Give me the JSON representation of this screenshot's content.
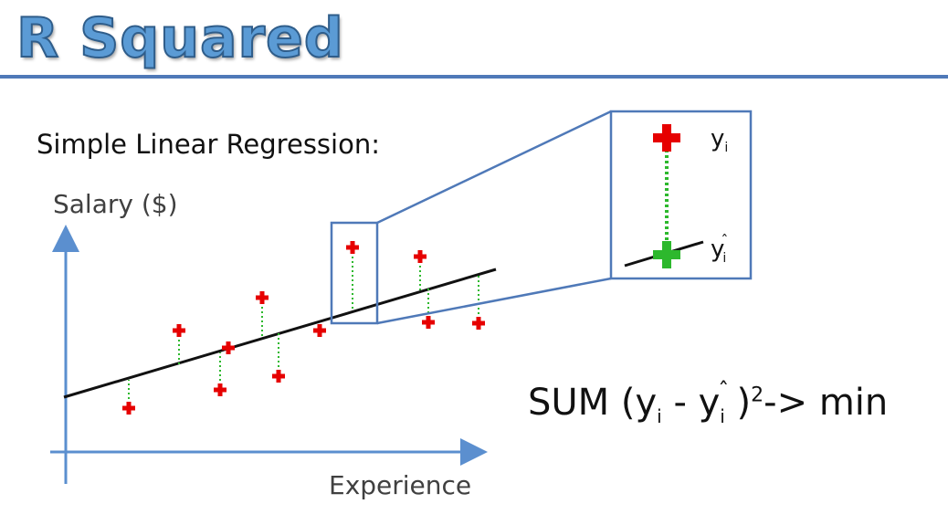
{
  "slide": {
    "title": "R Squared",
    "subtitle": "Simple Linear Regression:",
    "y_axis_label": "Salary ($)",
    "x_axis_label": "Experience",
    "formula": {
      "prefix": "SUM (y",
      "sub1": "i",
      "minus": " - y",
      "hat": "ˆ",
      "sub2": "i",
      "close": " )",
      "power": "2",
      "suffix": "-> min"
    },
    "inset": {
      "actual_label": "y",
      "actual_sub": "i",
      "predicted_label": "y",
      "predicted_hat": "ˆ",
      "predicted_sub": "i"
    }
  },
  "colors": {
    "title": "#5b9bd5",
    "title_outline": "#2f5d8a",
    "rule": "#4f79b8",
    "axes": "#5b8fcf",
    "regression_line": "#111111",
    "actual_point": "#e60000",
    "predicted_point": "#2db82d",
    "residual": "#2db82d",
    "zoom_box": "#4f79b8"
  },
  "icons": {
    "actual_marker": "red-plus-icon",
    "predicted_marker": "green-plus-icon"
  }
}
